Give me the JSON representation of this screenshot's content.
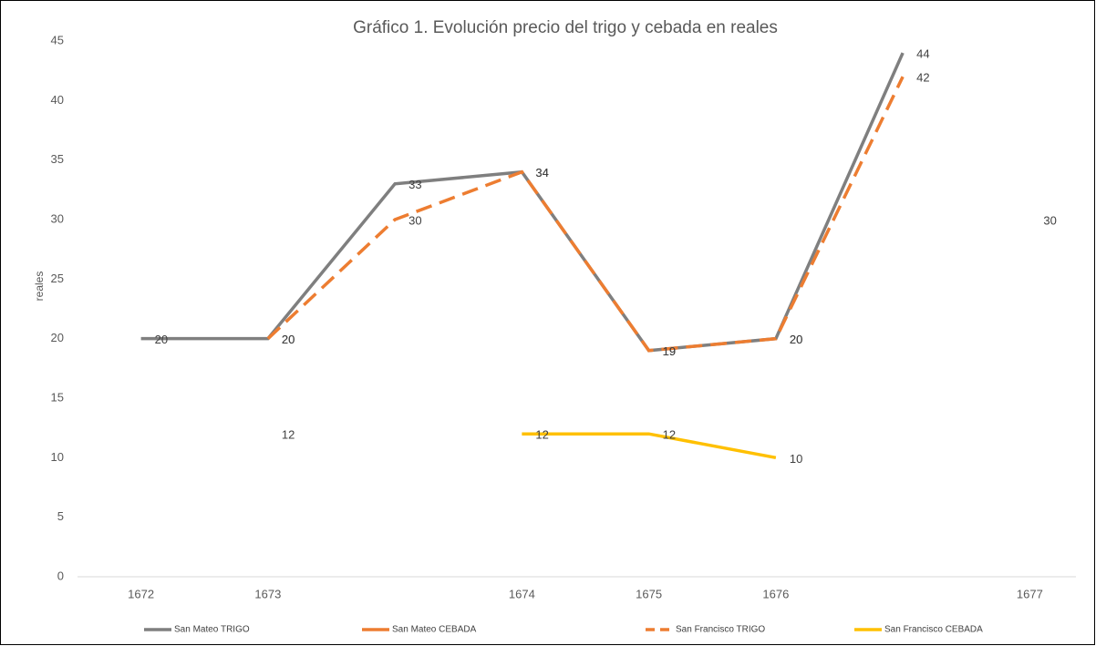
{
  "chart_data": {
    "type": "line",
    "title": "Gráfico 1. Evolución precio del trigo y cebada en reales",
    "y_label": "reales",
    "categories": [
      "1672",
      "1673",
      null,
      "1674",
      "1675",
      "1676",
      null,
      "1677"
    ],
    "series": [
      {
        "name": "San Mateo  TRIGO",
        "color": "#7f7f7f",
        "dash": false,
        "values": [
          20,
          20,
          33,
          34,
          19,
          20,
          44,
          null
        ]
      },
      {
        "name": "San Mateo  CEBADA",
        "color": "#ed7d31",
        "dash": false,
        "values": [
          null,
          12,
          null,
          null,
          null,
          null,
          null,
          30
        ]
      },
      {
        "name": "San Francisco  TRIGO",
        "color": "#ed7d31",
        "dash": true,
        "values": [
          null,
          20,
          30,
          34,
          19,
          20,
          42,
          null
        ]
      },
      {
        "name": "San Francisco  CEBADA",
        "color": "#ffc000",
        "dash": false,
        "values": [
          null,
          null,
          null,
          12,
          12,
          10,
          null,
          null
        ]
      }
    ],
    "ylim": [
      0,
      45
    ],
    "yticks": [
      0,
      5,
      10,
      15,
      20,
      25,
      30,
      35,
      40,
      45
    ],
    "grid": false
  }
}
